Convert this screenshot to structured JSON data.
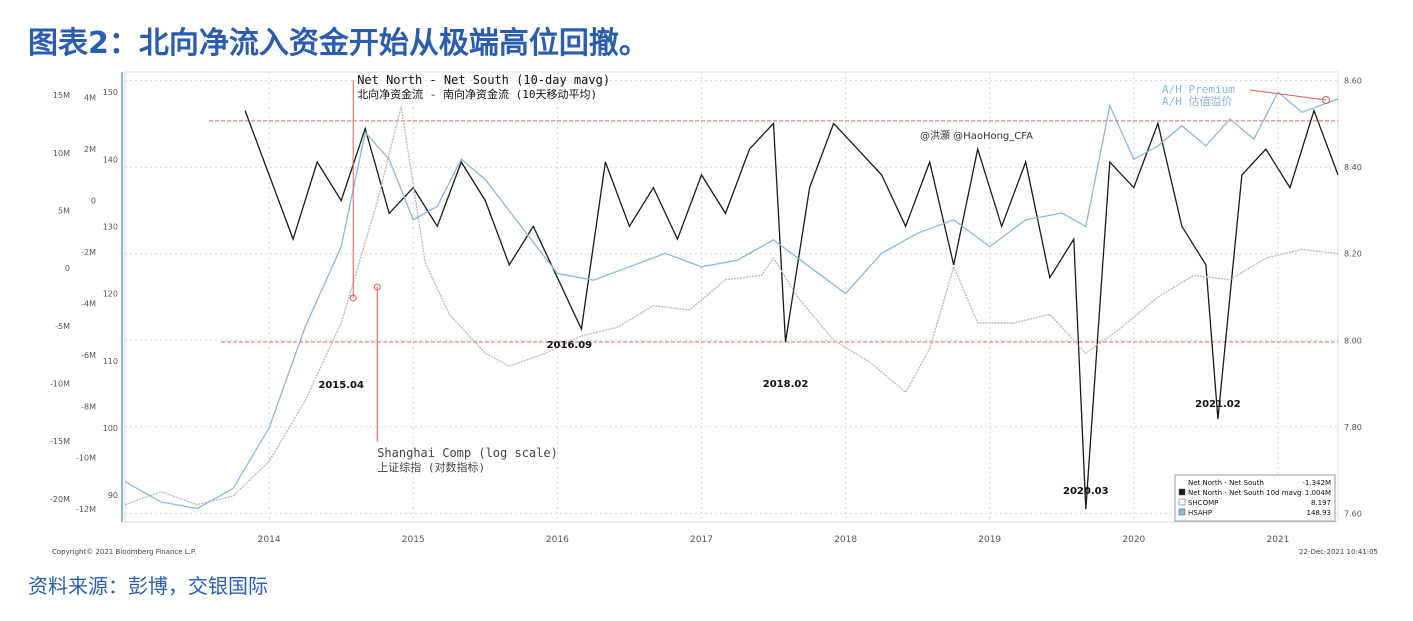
{
  "page": {
    "title": "图表2：北向净流入资金开始从极端高位回撤。",
    "source": "资料来源：彭博，交银国际"
  },
  "chart_data": {
    "type": "line",
    "x_ticks": [
      "2014",
      "2015",
      "2016",
      "2017",
      "2018",
      "2019",
      "2020",
      "2021"
    ],
    "xlim": [
      "2013-07",
      "2021-12"
    ],
    "axes": {
      "left_outer": {
        "ticks": [
          "15M",
          "10M",
          "5M",
          "0",
          "-5M",
          "-10M",
          "-15M",
          "-20M"
        ],
        "ylim": [
          -22,
          17
        ]
      },
      "left_mid": {
        "ticks": [
          "4M",
          "2M",
          "0",
          "-2M",
          "-4M",
          "-6M",
          "-8M",
          "-10M",
          "-12M"
        ],
        "ylim": [
          -12.5,
          5
        ]
      },
      "left_inner": {
        "ticks": [
          "150",
          "140",
          "130",
          "120",
          "110",
          "100",
          "90"
        ],
        "ylim": [
          86,
          153
        ]
      },
      "right": {
        "ticks": [
          "8.60",
          "8.40",
          "8.20",
          "8.00",
          "7.80",
          "7.60"
        ],
        "ylim": [
          7.58,
          8.62
        ]
      }
    },
    "grid": true,
    "reference_lines": [
      {
        "label": "upper",
        "y": 3.1,
        "axis": "left_mid"
      },
      {
        "label": "lower",
        "y": -5.5,
        "axis": "left_mid"
      }
    ],
    "series": [
      {
        "name": "Net North - Net South 10d mavg",
        "color": "#1a1a1a",
        "axis": "left_mid",
        "x": [
          "2014-05",
          "2014-07",
          "2014-09",
          "2014-11",
          "2015-01",
          "2015-03",
          "2015-05",
          "2015-07",
          "2015-09",
          "2015-11",
          "2016-01",
          "2016-03",
          "2016-05",
          "2016-07",
          "2016-09",
          "2016-11",
          "2017-01",
          "2017-03",
          "2017-05",
          "2017-07",
          "2017-09",
          "2017-11",
          "2018-01",
          "2018-02",
          "2018-04",
          "2018-06",
          "2018-08",
          "2018-10",
          "2018-12",
          "2019-02",
          "2019-04",
          "2019-06",
          "2019-08",
          "2019-10",
          "2019-12",
          "2020-02",
          "2020-03",
          "2020-05",
          "2020-07",
          "2020-09",
          "2020-11",
          "2021-01",
          "2021-02",
          "2021-04",
          "2021-06",
          "2021-08",
          "2021-10",
          "2021-12"
        ],
        "values": [
          3.5,
          1.0,
          -1.5,
          1.5,
          0.0,
          2.8,
          -0.5,
          0.5,
          -1.0,
          1.5,
          0.0,
          -2.5,
          -1.0,
          -3.0,
          -5.0,
          1.5,
          -1.0,
          0.5,
          -1.5,
          1.0,
          -0.5,
          2.0,
          3.0,
          -5.5,
          0.5,
          3.0,
          2.0,
          1.0,
          -1.0,
          1.5,
          -2.5,
          2.0,
          -1.0,
          1.5,
          -3.0,
          -1.5,
          -12.0,
          1.5,
          0.5,
          3.0,
          -1.0,
          -2.5,
          -8.5,
          1.0,
          2.0,
          0.5,
          3.5,
          1.0
        ]
      },
      {
        "name": "SHCOMP",
        "color": "#bbbbbb",
        "axis": "right",
        "x": [
          "2013-07",
          "2013-10",
          "2014-01",
          "2014-04",
          "2014-07",
          "2014-10",
          "2015-01",
          "2015-04",
          "2015-06",
          "2015-08",
          "2015-10",
          "2016-01",
          "2016-03",
          "2016-06",
          "2016-09",
          "2016-12",
          "2017-03",
          "2017-06",
          "2017-09",
          "2017-12",
          "2018-01",
          "2018-03",
          "2018-06",
          "2018-09",
          "2018-12",
          "2019-02",
          "2019-04",
          "2019-06",
          "2019-09",
          "2019-12",
          "2020-03",
          "2020-06",
          "2020-09",
          "2020-12",
          "2021-03",
          "2021-06",
          "2021-09",
          "2021-12"
        ],
        "values": [
          7.62,
          7.65,
          7.62,
          7.64,
          7.72,
          7.86,
          8.04,
          8.32,
          8.54,
          8.18,
          8.06,
          7.97,
          7.94,
          7.97,
          8.01,
          8.03,
          8.08,
          8.07,
          8.14,
          8.15,
          8.19,
          8.1,
          8.0,
          7.95,
          7.88,
          7.98,
          8.17,
          8.04,
          8.04,
          8.06,
          7.97,
          8.03,
          8.1,
          8.15,
          8.14,
          8.19,
          8.21,
          8.2
        ]
      },
      {
        "name": "HSAHP",
        "color": "#8ab8e0",
        "axis": "left_inner",
        "x": [
          "2013-07",
          "2013-10",
          "2014-01",
          "2014-04",
          "2014-07",
          "2014-10",
          "2015-01",
          "2015-03",
          "2015-05",
          "2015-07",
          "2015-09",
          "2015-11",
          "2016-01",
          "2016-04",
          "2016-07",
          "2016-10",
          "2017-01",
          "2017-04",
          "2017-07",
          "2017-10",
          "2018-01",
          "2018-04",
          "2018-07",
          "2018-10",
          "2019-01",
          "2019-04",
          "2019-07",
          "2019-10",
          "2020-01",
          "2020-03",
          "2020-05",
          "2020-07",
          "2020-09",
          "2020-11",
          "2021-01",
          "2021-03",
          "2021-05",
          "2021-07",
          "2021-09",
          "2021-12"
        ],
        "values": [
          92,
          89,
          88,
          91,
          100,
          115,
          127,
          144,
          140,
          131,
          133,
          140,
          137,
          130,
          123,
          122,
          124,
          126,
          124,
          125,
          128,
          124,
          120,
          126,
          129,
          131,
          127,
          131,
          132,
          130,
          148,
          140,
          142,
          145,
          142,
          146,
          143,
          150,
          147,
          149
        ]
      }
    ],
    "annotations": {
      "north_south_en": "Net North - Net South (10-day mavg)",
      "north_south_cn": "北向净资金流 - 南向净资金流 (10天移动平均)",
      "shcomp_en": "Shanghai Comp (log scale)",
      "shcomp_cn": "上证综指 (对数指标)",
      "ah_en": "A/H Premium",
      "ah_cn": "A/H 估值溢价",
      "watermark": "@洪灝 @HaoHong_CFA",
      "event_labels": [
        "2015.04",
        "2016.09",
        "2018.02",
        "2020.03",
        "2021.02"
      ]
    },
    "legend": {
      "position": "bottom-right",
      "rows": [
        {
          "label": "Net North - Net South",
          "value": "-1.342M",
          "swatch": "none"
        },
        {
          "label": "Net North - Net South 10d mavg",
          "value": "1.004M",
          "swatch": "#1a1a1a"
        },
        {
          "label": "SHCOMP",
          "value": "8.197",
          "swatch": "#ffffff"
        },
        {
          "label": "HSAHP",
          "value": "148.93",
          "swatch": "#8ab8e0"
        }
      ]
    },
    "copyright": "Copyright© 2021 Bloomberg Finance L.P.",
    "timestamp": "22-Dec-2021 10:41:05"
  }
}
